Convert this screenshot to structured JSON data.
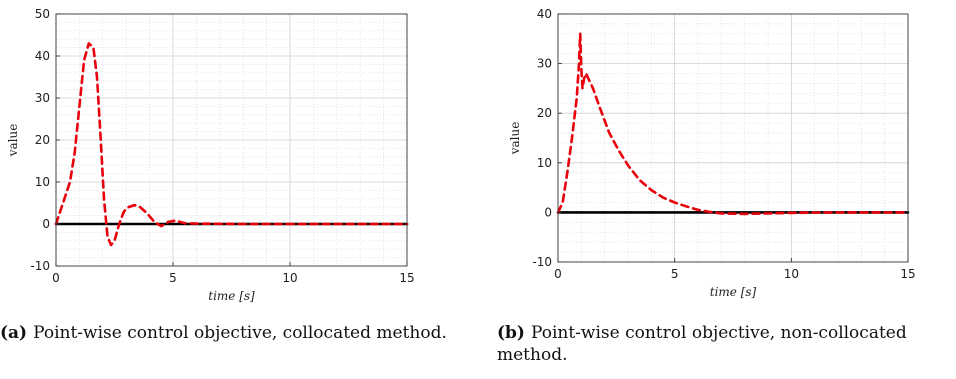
{
  "chart_data": [
    {
      "type": "line",
      "xlabel": "time [s]",
      "ylabel": "value",
      "xlim": [
        0,
        15
      ],
      "ylim": [
        -10,
        50
      ],
      "xticks": [
        0,
        5,
        10,
        15
      ],
      "yticks": [
        -10,
        0,
        10,
        20,
        30,
        40,
        50
      ],
      "grid": true,
      "caption_tag": "(a)",
      "caption_text": "Point-wise control objective, collocated method.",
      "series": [
        {
          "color": "#000000",
          "style": "solid",
          "x": [
            0,
            15
          ],
          "y": [
            0,
            0
          ]
        },
        {
          "color": "#e8000b",
          "style": "dashed",
          "x": [
            0,
            0.3,
            0.6,
            0.8,
            1.0,
            1.2,
            1.4,
            1.6,
            1.75,
            1.9,
            2.05,
            2.2,
            2.35,
            2.5,
            2.7,
            2.9,
            3.1,
            3.35,
            3.6,
            3.9,
            4.2,
            4.5,
            4.8,
            5.1,
            5.5,
            6.0,
            7.0,
            8.0,
            10.0,
            12.0,
            15.0
          ],
          "y": [
            0,
            5,
            10,
            17,
            28,
            39,
            43,
            42,
            35,
            21,
            6,
            -3,
            -5,
            -4,
            0,
            3,
            4,
            4.5,
            4,
            2.5,
            0.5,
            -0.5,
            0.5,
            0.8,
            0.2,
            0.1,
            0.05,
            0,
            0,
            0,
            0
          ]
        }
      ]
    },
    {
      "type": "line",
      "xlabel": "time [s]",
      "ylabel": "value",
      "xlim": [
        0,
        15
      ],
      "ylim": [
        -10,
        40
      ],
      "xticks": [
        0,
        5,
        10,
        15
      ],
      "yticks": [
        -10,
        0,
        10,
        20,
        30,
        40
      ],
      "grid": true,
      "caption_tag": "(b)",
      "caption_text": "Point-wise control objective, non-collocated method.",
      "series": [
        {
          "color": "#000000",
          "style": "solid",
          "x": [
            0,
            15
          ],
          "y": [
            0,
            0
          ]
        },
        {
          "color": "#e8000b",
          "style": "dashed",
          "x": [
            0,
            0.2,
            0.4,
            0.6,
            0.8,
            0.9,
            0.95,
            1.0,
            1.05,
            1.12,
            1.2,
            1.3,
            1.5,
            1.8,
            2.2,
            2.6,
            3.0,
            3.5,
            4.0,
            4.5,
            5.0,
            5.5,
            6.0,
            6.5,
            7.0,
            8.0,
            9.0,
            10.0,
            12.0,
            15.0
          ],
          "y": [
            0,
            2,
            8,
            15,
            23,
            30,
            36,
            29,
            25,
            27,
            28,
            27,
            25,
            21,
            16,
            12.5,
            9.5,
            6.5,
            4.5,
            3,
            2,
            1.2,
            0.5,
            0.1,
            -0.2,
            -0.3,
            -0.2,
            -0.1,
            0,
            0
          ]
        }
      ]
    }
  ]
}
